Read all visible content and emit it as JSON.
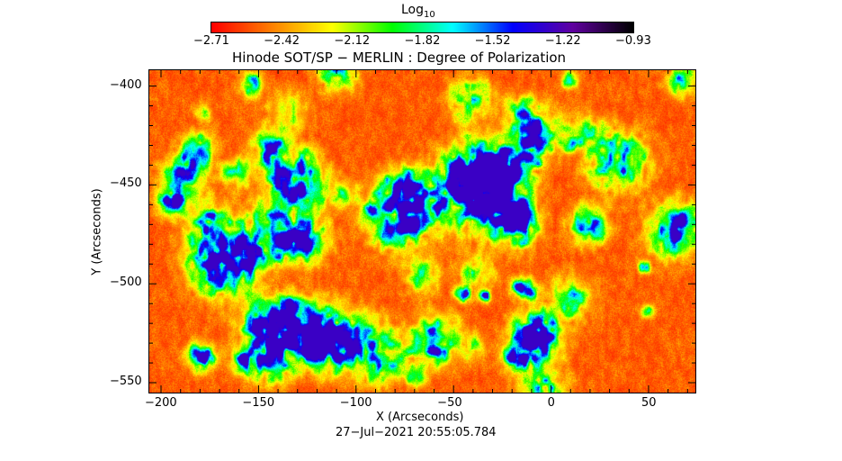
{
  "chart_data": {
    "type": "heatmap",
    "title": "Hinode SOT/SP − MERLIN : Degree of Polarization",
    "xlabel": "X (Arcseconds)",
    "ylabel": "Y (Arcseconds)",
    "xlim": [
      -206,
      74
    ],
    "ylim": [
      -555,
      -392
    ],
    "xticks": [
      "−200",
      "−150",
      "−100",
      "−50",
      "0",
      "50"
    ],
    "xtick_values": [
      -200,
      -150,
      -100,
      -50,
      0,
      50
    ],
    "yticks": [
      "−400",
      "−450",
      "−500",
      "−550"
    ],
    "ytick_values": [
      -400,
      -450,
      -500,
      -550
    ],
    "colorbar": {
      "label": "Log",
      "label_sub": "10",
      "range": [
        -2.71,
        -0.93
      ],
      "ticks": [
        "−2.71",
        "−2.42",
        "−2.12",
        "−1.82",
        "−1.52",
        "−1.22",
        "−0.93"
      ],
      "colormap": [
        "#ff0000",
        "#ff8000",
        "#ffff00",
        "#00ff00",
        "#00ffff",
        "#0000ff",
        "#60009f",
        "#000000"
      ]
    },
    "timestamp": "27−Jul−2021 20:55:05.784"
  }
}
